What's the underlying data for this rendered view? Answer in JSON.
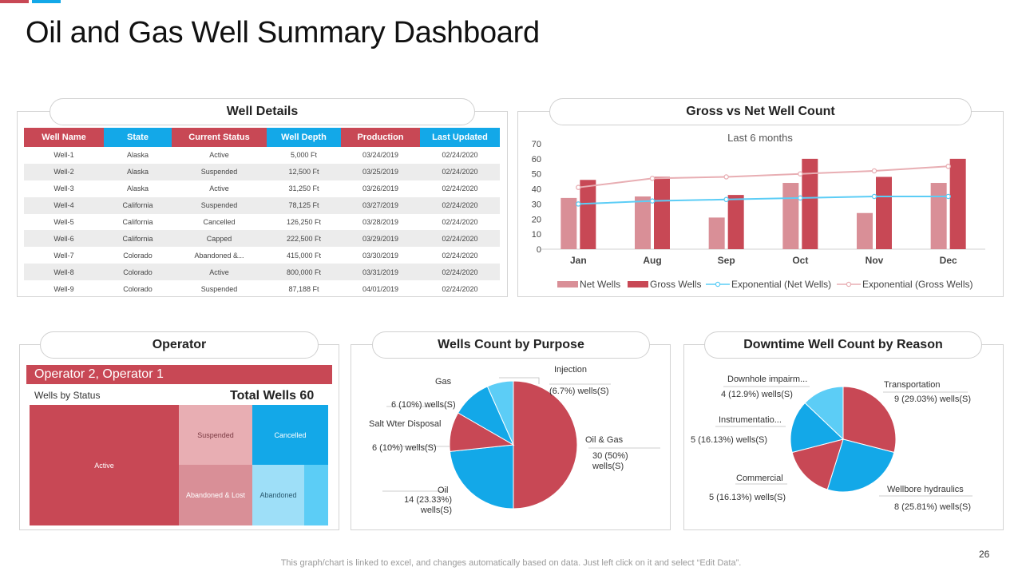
{
  "title": "Oil and Gas Well Summary Dashboard",
  "page_number": "26",
  "footer_note": "This graph/chart is linked to excel, and changes automatically based on data. Just left click on it and select “Edit Data”.",
  "colors": {
    "red": "#c84855",
    "light_red": "#d98f97",
    "blue": "#13a8e8",
    "light_blue": "#5ccdf6"
  },
  "well_details": {
    "title": "Well Details",
    "columns": [
      "Well Name",
      "State",
      "Current Status",
      "Well Depth",
      "Production",
      "Last Updated"
    ],
    "rows": [
      [
        "Well-1",
        "Alaska",
        "Active",
        "5,000 Ft",
        "03/24/2019",
        "02/24/2020"
      ],
      [
        "Well-2",
        "Alaska",
        "Suspended",
        "12,500 Ft",
        "03/25/2019",
        "02/24/2020"
      ],
      [
        "Well-3",
        "Alaska",
        "Active",
        "31,250 Ft",
        "03/26/2019",
        "02/24/2020"
      ],
      [
        "Well-4",
        "California",
        "Suspended",
        "78,125 Ft",
        "03/27/2019",
        "02/24/2020"
      ],
      [
        "Well-5",
        "California",
        "Cancelled",
        "126,250 Ft",
        "03/28/2019",
        "02/24/2020"
      ],
      [
        "Well-6",
        "California",
        "Capped",
        "222,500 Ft",
        "03/29/2019",
        "02/24/2020"
      ],
      [
        "Well-7",
        "Colorado",
        "Abandoned &...",
        "415,000 Ft",
        "03/30/2019",
        "02/24/2020"
      ],
      [
        "Well-8",
        "Colorado",
        "Active",
        "800,000 Ft",
        "03/31/2019",
        "02/24/2020"
      ],
      [
        "Well-9",
        "Colorado",
        "Suspended",
        "87,188 Ft",
        "04/01/2019",
        "02/24/2020"
      ]
    ]
  },
  "operator": {
    "title": "Operator",
    "header": "Operator 2, Operator 1",
    "subtitle": "Wells by Status",
    "total": "Total Wells 60",
    "segments": [
      "Active",
      "Suspended",
      "Cancelled",
      "Abandoned & Lost",
      "Abandoned"
    ]
  },
  "chart_data": [
    {
      "type": "bar",
      "title": "Gross vs Net Well Count",
      "subtitle": "Last 6 months",
      "categories": [
        "Jan",
        "Aug",
        "Sep",
        "Oct",
        "Nov",
        "Dec"
      ],
      "series": [
        {
          "name": "Net Wells",
          "values": [
            34,
            35,
            21,
            44,
            24,
            44
          ],
          "color": "#d98f97"
        },
        {
          "name": "Gross Wells",
          "values": [
            46,
            48,
            36,
            60,
            48,
            60
          ],
          "color": "#c84855"
        }
      ],
      "trendlines": [
        {
          "name": "Exponential (Net Wells)",
          "values": [
            30,
            32,
            33,
            34,
            35,
            35
          ],
          "color": "#5ccdf6"
        },
        {
          "name": "Exponential (Gross Wells)",
          "values": [
            41,
            47,
            48,
            50,
            52,
            55
          ],
          "color": "#e8aeb3"
        }
      ],
      "y_ticks": [
        "0",
        "10",
        "20",
        "30",
        "40",
        "50",
        "60",
        "70"
      ],
      "ylim": [
        0,
        70
      ],
      "legend_position": "bottom"
    },
    {
      "type": "pie",
      "title": "Wells Count by Purpose",
      "slices": [
        {
          "label": "Oil & Gas",
          "value": 30,
          "text": "30 (50%) wells(S)",
          "color": "#c84855"
        },
        {
          "label": "Oil",
          "value": 14,
          "text": "14 (23.33%) wells(S)",
          "color": "#13a8e8"
        },
        {
          "label": "Salt Wter Disposal",
          "value": 6,
          "text": "6 (10%) wells(S)",
          "color": "#c84855"
        },
        {
          "label": "Gas",
          "value": 6,
          "text": "6 (10%) wells(S)",
          "color": "#13a8e8"
        },
        {
          "label": "Injection",
          "value": 4,
          "text": "(6.7%) wells(S)",
          "color": "#5ccdf6"
        }
      ]
    },
    {
      "type": "pie",
      "title": "Downtime Well Count by Reason",
      "slices": [
        {
          "label": "Transportation",
          "value": 9,
          "text": "9 (29.03%) wells(S)",
          "color": "#c84855"
        },
        {
          "label": "Wellbore hydraulics",
          "value": 8,
          "text": "8 (25.81%) wells(S)",
          "color": "#13a8e8"
        },
        {
          "label": "Commercial",
          "value": 5,
          "text": "5 (16.13%) wells(S)",
          "color": "#c84855"
        },
        {
          "label": "Instrumentatio...",
          "value": 5,
          "text": "5 (16.13%) wells(S)",
          "color": "#13a8e8"
        },
        {
          "label": "Downhole impairm...",
          "value": 4,
          "text": "4 (12.9%) wells(S)",
          "color": "#5ccdf6"
        }
      ]
    }
  ]
}
